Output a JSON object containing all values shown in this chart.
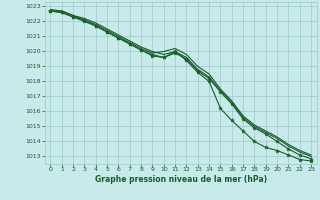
{
  "bg_color": "#c8eaea",
  "grid_color": "#9ec8c8",
  "line_color": "#1a5c2a",
  "marker_color": "#1a5c2a",
  "xlabel": "Graphe pression niveau de la mer (hPa)",
  "xlabel_color": "#1a5c2a",
  "tick_color": "#1a5c2a",
  "xlim": [
    -0.5,
    23.5
  ],
  "ylim": [
    1012.5,
    1023.3
  ],
  "yticks": [
    1013,
    1014,
    1015,
    1016,
    1017,
    1018,
    1019,
    1020,
    1021,
    1022,
    1023
  ],
  "xticks": [
    0,
    1,
    2,
    3,
    4,
    5,
    6,
    7,
    8,
    9,
    10,
    11,
    12,
    13,
    14,
    15,
    16,
    17,
    18,
    19,
    20,
    21,
    22,
    23
  ],
  "lines": [
    {
      "x": [
        0,
        1,
        2,
        3,
        4,
        5,
        6,
        7,
        8,
        9,
        10,
        11,
        12,
        13,
        14,
        15,
        16,
        17,
        18,
        19,
        20,
        21,
        22,
        23
      ],
      "y": [
        1022.7,
        1022.7,
        1022.4,
        1022.2,
        1021.9,
        1021.5,
        1021.1,
        1020.7,
        1020.3,
        1020.0,
        1019.8,
        1020.0,
        1019.6,
        1018.8,
        1018.3,
        1017.4,
        1016.6,
        1015.6,
        1015.0,
        1014.6,
        1014.2,
        1013.7,
        1013.3,
        1013.0
      ],
      "marker": false
    },
    {
      "x": [
        0,
        1,
        2,
        3,
        4,
        5,
        6,
        7,
        8,
        9,
        10,
        11,
        12,
        13,
        14,
        15,
        16,
        17,
        18,
        19,
        20,
        21,
        22,
        23
      ],
      "y": [
        1022.7,
        1022.6,
        1022.3,
        1022.0,
        1021.7,
        1021.3,
        1020.9,
        1020.5,
        1020.1,
        1019.7,
        1019.6,
        1020.0,
        1019.4,
        1018.6,
        1018.0,
        1016.2,
        1015.4,
        1014.7,
        1014.0,
        1013.6,
        1013.4,
        1013.1,
        1012.8,
        1012.7
      ],
      "marker": true
    },
    {
      "x": [
        0,
        1,
        2,
        3,
        4,
        5,
        6,
        7,
        8,
        9,
        10,
        11,
        12,
        13,
        14,
        15,
        16,
        17,
        18,
        19,
        20,
        21,
        22,
        23
      ],
      "y": [
        1022.8,
        1022.7,
        1022.4,
        1022.1,
        1021.8,
        1021.4,
        1021.0,
        1020.6,
        1020.2,
        1019.9,
        1020.0,
        1020.2,
        1019.8,
        1019.0,
        1018.5,
        1017.5,
        1016.7,
        1015.7,
        1015.1,
        1014.7,
        1014.3,
        1013.8,
        1013.4,
        1013.1
      ],
      "marker": false
    },
    {
      "x": [
        0,
        1,
        2,
        3,
        4,
        5,
        6,
        7,
        8,
        9,
        10,
        11,
        12,
        13,
        14,
        15,
        16,
        17,
        18,
        19,
        20,
        21,
        22,
        23
      ],
      "y": [
        1022.7,
        1022.6,
        1022.3,
        1022.1,
        1021.7,
        1021.3,
        1020.9,
        1020.5,
        1020.1,
        1019.8,
        1019.6,
        1019.9,
        1019.5,
        1018.7,
        1018.2,
        1017.3,
        1016.5,
        1015.5,
        1014.9,
        1014.5,
        1014.0,
        1013.5,
        1013.1,
        1012.85
      ],
      "marker": true
    }
  ]
}
